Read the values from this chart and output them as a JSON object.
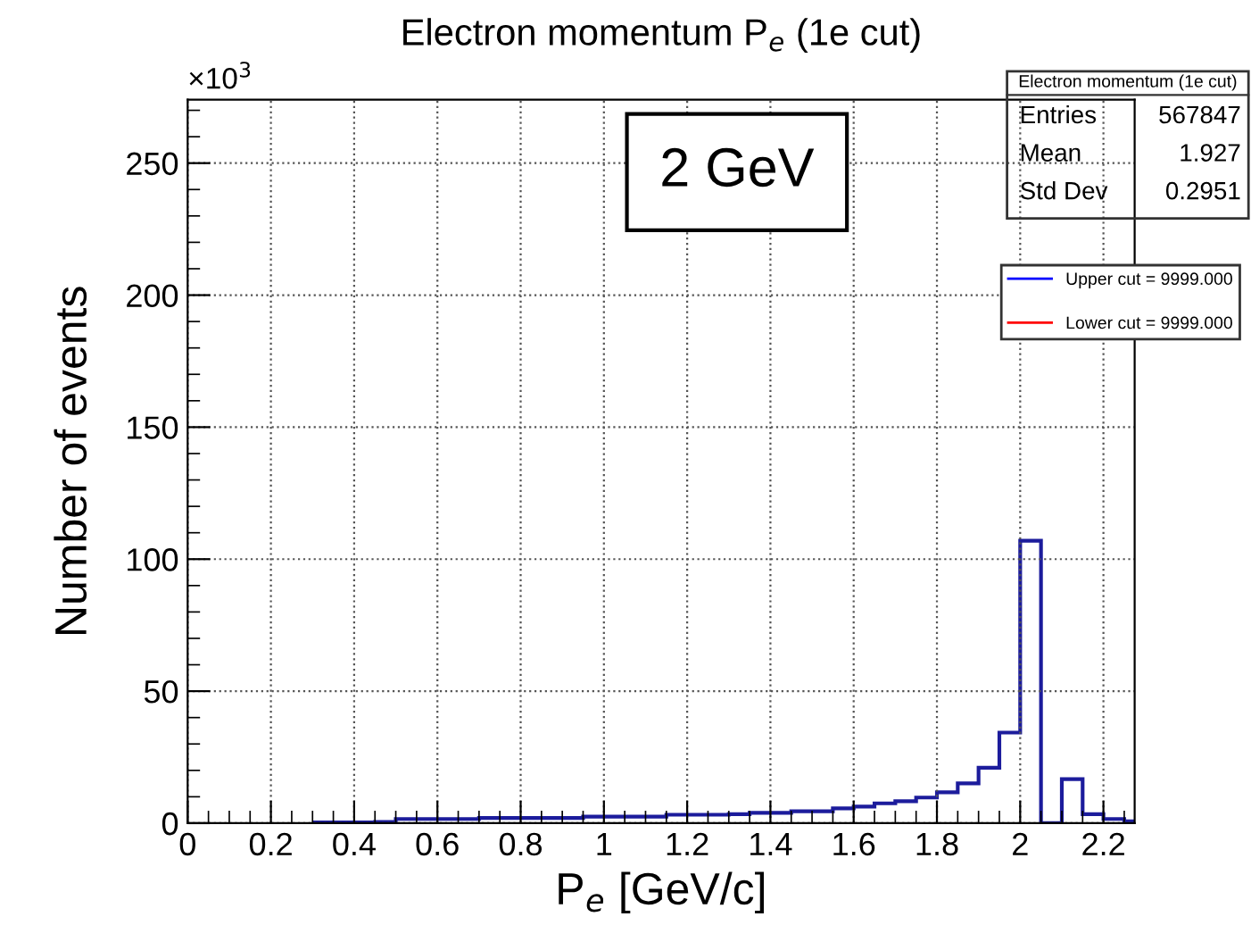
{
  "chart_data": {
    "type": "histogram",
    "title": "Electron momentum P$_{e}$ (1e cut)",
    "xlabel": "P$_{e}$ [GeV/c]",
    "ylabel": "Number of events",
    "bins": [
      0.3,
      0.35,
      0.4,
      0.45,
      0.5,
      0.55,
      0.6,
      0.65,
      0.7,
      0.75,
      0.8,
      0.85,
      0.9,
      0.95,
      1.0,
      1.05,
      1.1,
      1.15,
      1.2,
      1.25,
      1.3,
      1.35,
      1.4,
      1.45,
      1.5,
      1.55,
      1.6,
      1.65,
      1.7,
      1.75,
      1.8,
      1.85,
      1.9,
      1.95,
      2.0,
      2.05,
      2.1,
      2.15,
      2.2,
      2.25,
      2.275
    ],
    "series": [
      {
        "color": "#1c1c9c",
        "values": [
          0.3,
          0.3,
          0.3,
          0.5,
          1.6,
          1.6,
          1.6,
          1.6,
          2.0,
          2.0,
          2.0,
          2.0,
          2.0,
          2.5,
          2.5,
          2.5,
          2.5,
          3.2,
          3.2,
          3.2,
          3.4,
          3.9,
          3.9,
          4.5,
          4.5,
          5.6,
          6.3,
          7.5,
          8.3,
          9.7,
          11.7,
          15.1,
          21,
          34.3,
          107,
          0,
          16.7,
          3.4,
          1.6,
          0.7
        ]
      },
      {
        "type": "line",
        "name": "Upper cut = 9999.000",
        "color": "#0000ff",
        "values": [
          null,
          null,
          null,
          null,
          null,
          null,
          null,
          null,
          null,
          null,
          null,
          null,
          null,
          null,
          null,
          null,
          null,
          null,
          null,
          null,
          null,
          null,
          null,
          null,
          null,
          null,
          null,
          null,
          null,
          null,
          null,
          null,
          null,
          null,
          null,
          null,
          null,
          null,
          null,
          null
        ]
      },
      {
        "type": "line",
        "name": "Lower cut = 9999.000",
        "color": "#ff0000",
        "values": [
          null,
          null,
          null,
          null,
          null,
          null,
          null,
          null,
          null,
          null,
          null,
          null,
          null,
          null,
          null,
          null,
          null,
          null,
          null,
          null,
          null,
          null,
          null,
          null,
          null,
          null,
          null,
          null,
          null,
          null,
          null,
          null,
          null,
          null,
          null,
          null,
          null,
          null,
          null,
          null
        ]
      }
    ],
    "xlim": [
      0,
      2.275
    ],
    "xticks": [
      0,
      0.2,
      0.4,
      0.6,
      0.8,
      1,
      1.2,
      1.4,
      1.6,
      1.8,
      2,
      2.2
    ],
    "ylim": [
      0,
      274
    ],
    "yticks": [
      0,
      50,
      100,
      150,
      200,
      250
    ],
    "grid": true,
    "legend": "top right",
    "annotations": [
      "×10$^{3}$",
      "2 GeV",
      "Electron momentum (1e cut)",
      "Entries",
      "567847",
      "Mean",
      "1.927",
      "Std Dev",
      "0.2951"
    ]
  }
}
